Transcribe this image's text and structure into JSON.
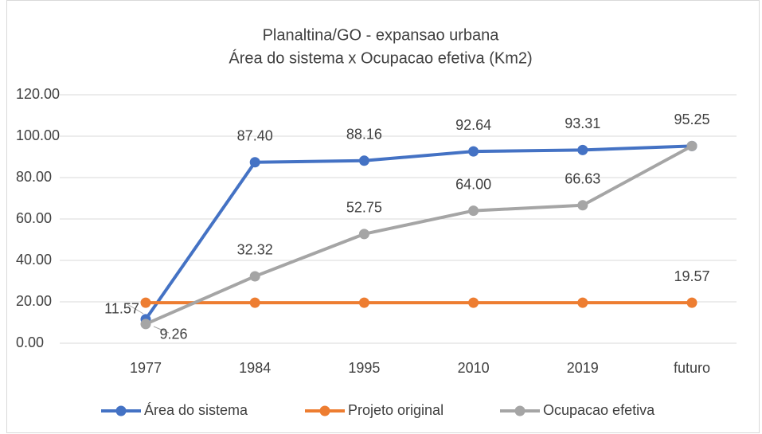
{
  "chart_data": {
    "type": "line",
    "title": "Planaltina/GO - expansao urbana",
    "subtitle": "Área do sistema x Ocupacao efetiva (Km2)",
    "categories": [
      "1977",
      "1984",
      "1995",
      "2010",
      "2019",
      "futuro"
    ],
    "series": [
      {
        "name": "Área do sistema",
        "color": "#4472c4",
        "values": [
          11.57,
          87.4,
          88.16,
          92.64,
          93.31,
          95.25
        ],
        "value_labels": [
          "11.57",
          "87.40",
          "88.16",
          "92.64",
          "93.31",
          "95.25"
        ]
      },
      {
        "name": "Projeto original",
        "color": "#ed7d31",
        "values": [
          19.57,
          19.57,
          19.57,
          19.57,
          19.57,
          19.57
        ],
        "value_labels": [
          null,
          null,
          null,
          null,
          null,
          "19.57"
        ]
      },
      {
        "name": "Ocupacao efetiva",
        "color": "#a5a5a5",
        "values": [
          9.26,
          32.32,
          52.75,
          64.0,
          66.63,
          95.25
        ],
        "value_labels": [
          "9.26",
          "32.32",
          "52.75",
          "64.00",
          "66.63",
          null
        ]
      }
    ],
    "ylim": [
      0,
      120
    ],
    "yticks": [
      {
        "value": 0,
        "label": "0.00"
      },
      {
        "value": 20,
        "label": "20.00"
      },
      {
        "value": 40,
        "label": "40.00"
      },
      {
        "value": 60,
        "label": "60.00"
      },
      {
        "value": 80,
        "label": "80.00"
      },
      {
        "value": 100,
        "label": "100.00"
      },
      {
        "value": 120,
        "label": "120.00"
      }
    ],
    "grid": true,
    "legend": "bottom"
  }
}
